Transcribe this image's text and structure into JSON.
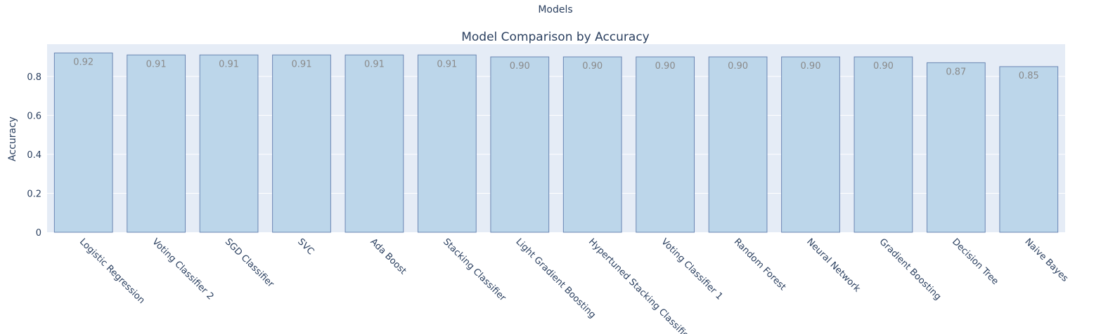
{
  "chart_data": {
    "type": "bar",
    "title": "Model Comparison by Accuracy",
    "xlabel": "Models",
    "ylabel": "Accuracy",
    "categories": [
      "Logistic Regression",
      "Voting Classifier 2",
      "SGD Classifier",
      "SVC",
      "Ada Boost",
      "Stacking Classifier",
      "Light Gradient Boosting",
      "Hypertuned Stacking Classifier",
      "Voting Classifier 1",
      "Random Forest",
      "Neural Network",
      "Gradient Boosting",
      "Decision Tree",
      "Naive Bayes"
    ],
    "values": [
      0.92,
      0.91,
      0.91,
      0.91,
      0.91,
      0.91,
      0.9,
      0.9,
      0.9,
      0.9,
      0.9,
      0.9,
      0.87,
      0.85
    ],
    "value_labels": [
      "0.92",
      "0.91",
      "0.91",
      "0.91",
      "0.91",
      "0.91",
      "0.90",
      "0.90",
      "0.90",
      "0.90",
      "0.90",
      "0.90",
      "0.87",
      "0.85"
    ],
    "ylim": [
      0,
      0.965
    ],
    "yticks": [
      0,
      0.2,
      0.4,
      0.6,
      0.8
    ],
    "ytick_labels": [
      "0",
      "0.2",
      "0.4",
      "0.6",
      "0.8"
    ],
    "grid": true,
    "colors": {
      "bar_fill": "#bcd6ea",
      "bar_stroke": "#6a86b3",
      "plot_bg": "#e5ecf6",
      "grid": "#ffffff",
      "text": "#2a3f5f",
      "value_text": "#8a8a8a"
    }
  }
}
